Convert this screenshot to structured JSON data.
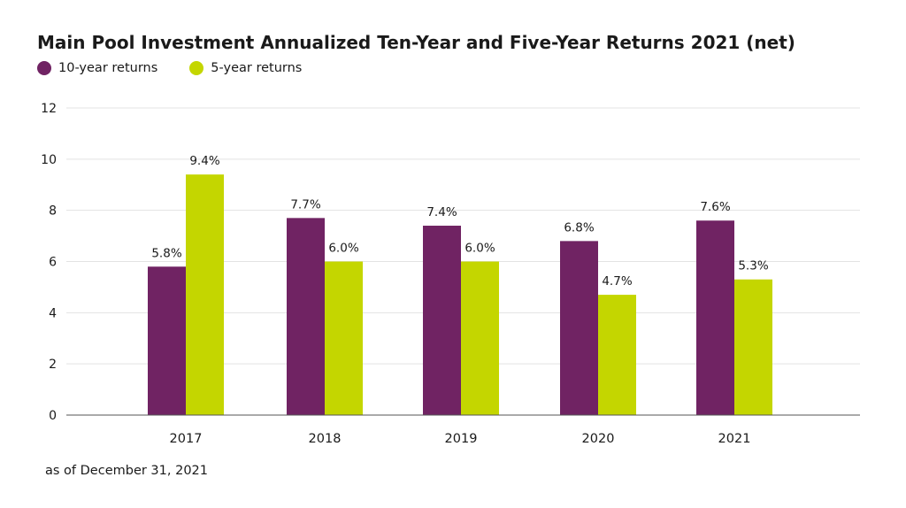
{
  "chart_data": {
    "type": "bar",
    "title": "Main Pool Investment Annualized Ten-Year and Five-Year Returns 2021 (net)",
    "categories": [
      "2017",
      "2018",
      "2019",
      "2020",
      "2021"
    ],
    "series": [
      {
        "name": "10-year returns",
        "color": "#702363",
        "values": [
          5.8,
          7.7,
          7.4,
          6.8,
          7.6
        ],
        "labels": [
          "5.8%",
          "7.7%",
          "7.4%",
          "6.8%",
          "7.6%"
        ]
      },
      {
        "name": "5-year returns",
        "color": "#c4d600",
        "values": [
          9.4,
          6.0,
          6.0,
          4.7,
          5.3
        ],
        "labels": [
          "9.4%",
          "6.0%",
          "6.0%",
          "4.7%",
          "5.3%"
        ]
      }
    ],
    "ylim": [
      0,
      12
    ],
    "yticks": [
      "0",
      "2",
      "4",
      "6",
      "8",
      "10",
      "12"
    ],
    "grid": true,
    "legend_position": "top-left",
    "xlabel": "",
    "ylabel": ""
  },
  "footnote": "as of December 31, 2021"
}
